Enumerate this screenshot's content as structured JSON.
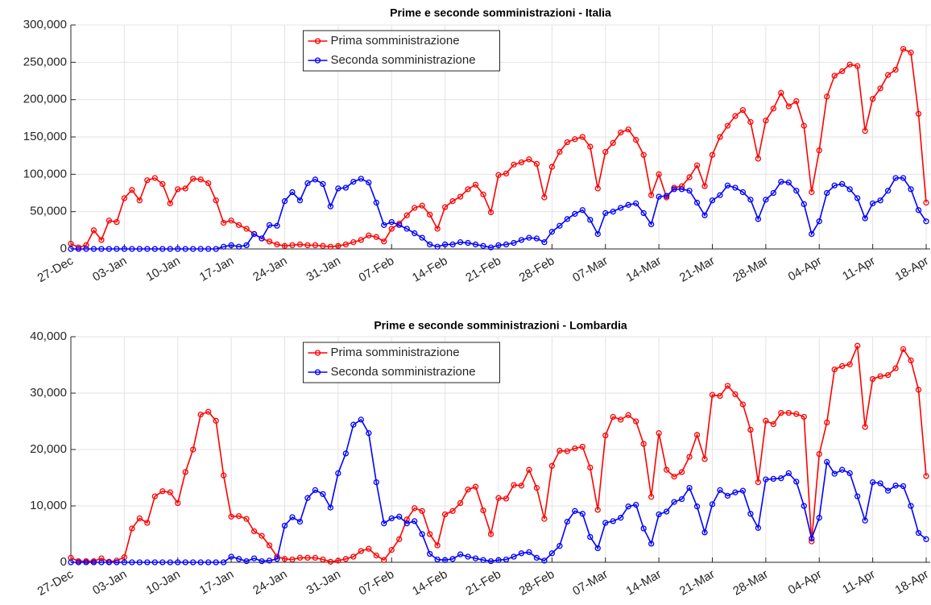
{
  "chart_data": [
    {
      "type": "line",
      "title": "Prime e seconde somministrazioni - Italia",
      "x": [
        "27-Dec",
        "28-Dec",
        "29-Dec",
        "30-Dec",
        "31-Dec",
        "01-Jan",
        "02-Jan",
        "03-Jan",
        "04-Jan",
        "05-Jan",
        "06-Jan",
        "07-Jan",
        "08-Jan",
        "09-Jan",
        "10-Jan",
        "11-Jan",
        "12-Jan",
        "13-Jan",
        "14-Jan",
        "15-Jan",
        "16-Jan",
        "17-Jan",
        "18-Jan",
        "19-Jan",
        "20-Jan",
        "21-Jan",
        "22-Jan",
        "23-Jan",
        "24-Jan",
        "25-Jan",
        "26-Jan",
        "27-Jan",
        "28-Jan",
        "29-Jan",
        "30-Jan",
        "31-Jan",
        "01-Feb",
        "02-Feb",
        "03-Feb",
        "04-Feb",
        "05-Feb",
        "06-Feb",
        "07-Feb",
        "08-Feb",
        "09-Feb",
        "10-Feb",
        "11-Feb",
        "12-Feb",
        "13-Feb",
        "14-Feb",
        "15-Feb",
        "16-Feb",
        "17-Feb",
        "18-Feb",
        "19-Feb",
        "20-Feb",
        "21-Feb",
        "22-Feb",
        "23-Feb",
        "24-Feb",
        "25-Feb",
        "26-Feb",
        "27-Feb",
        "28-Feb",
        "01-Mar",
        "02-Mar",
        "03-Mar",
        "04-Mar",
        "05-Mar",
        "06-Mar",
        "07-Mar",
        "08-Mar",
        "09-Mar",
        "10-Mar",
        "11-Mar",
        "12-Mar",
        "13-Mar",
        "14-Mar",
        "15-Mar",
        "16-Mar",
        "17-Mar",
        "18-Mar",
        "19-Mar",
        "20-Mar",
        "21-Mar",
        "22-Mar",
        "23-Mar",
        "24-Mar",
        "25-Mar",
        "26-Mar",
        "27-Mar",
        "28-Mar",
        "29-Mar",
        "30-Mar",
        "31-Mar",
        "01-Apr",
        "02-Apr",
        "03-Apr",
        "04-Apr",
        "05-Apr",
        "06-Apr",
        "07-Apr",
        "08-Apr",
        "09-Apr",
        "10-Apr",
        "11-Apr",
        "12-Apr",
        "13-Apr",
        "14-Apr",
        "15-Apr",
        "16-Apr",
        "17-Apr",
        "18-Apr"
      ],
      "xticks": [
        "27-Dec",
        "03-Jan",
        "10-Jan",
        "17-Jan",
        "24-Jan",
        "31-Jan",
        "07-Feb",
        "14-Feb",
        "21-Feb",
        "28-Feb",
        "07-Mar",
        "14-Mar",
        "21-Mar",
        "28-Mar",
        "04-Apr",
        "11-Apr",
        "18-Apr"
      ],
      "ylim": [
        0,
        300000
      ],
      "yticks": [
        0,
        {
          "value": 50000,
          "label": "50,000"
        },
        {
          "value": 100000,
          "label": "100,000"
        },
        {
          "value": 150000,
          "label": "150,000"
        },
        {
          "value": 200000,
          "label": "200,000"
        },
        {
          "value": 250000,
          "label": "250,000"
        },
        {
          "value": 300000,
          "label": "300,000"
        }
      ],
      "grid": true,
      "legend": "north",
      "series": [
        {
          "name": "Prima somministrazione",
          "color": "#ff0000",
          "values": [
            7000,
            2000,
            5000,
            25000,
            12000,
            38000,
            36000,
            68000,
            79000,
            65000,
            92000,
            95000,
            87000,
            61000,
            80000,
            81000,
            94000,
            93000,
            88000,
            65000,
            35000,
            38000,
            32000,
            27000,
            20000,
            14000,
            10000,
            6000,
            4000,
            5000,
            6000,
            5000,
            5000,
            4000,
            3000,
            4000,
            6000,
            9000,
            12000,
            18000,
            16000,
            10000,
            27000,
            34000,
            45000,
            55000,
            58000,
            46000,
            27000,
            56000,
            64000,
            70000,
            80000,
            86000,
            73000,
            49000,
            99000,
            101000,
            113000,
            116000,
            120000,
            114000,
            69000,
            110000,
            130000,
            143000,
            147000,
            150000,
            137000,
            81000,
            130000,
            142000,
            156000,
            160000,
            146000,
            126000,
            72000,
            100000,
            69000,
            82000,
            84000,
            96000,
            112000,
            84000,
            126000,
            150000,
            165000,
            178000,
            186000,
            170000,
            121000,
            172000,
            188000,
            209000,
            191000,
            198000,
            165000,
            76000,
            132000,
            204000,
            232000,
            238000,
            247000,
            245000,
            158000,
            201000,
            215000,
            233000,
            240000,
            268000,
            263000,
            181000,
            62000
          ]
        },
        {
          "name": "Seconda somministrazione",
          "color": "#0000ff",
          "values": [
            0,
            0,
            0,
            0,
            0,
            0,
            0,
            0,
            0,
            0,
            0,
            0,
            0,
            0,
            0,
            0,
            0,
            0,
            0,
            0,
            3000,
            5000,
            3000,
            5000,
            20000,
            14000,
            32000,
            31000,
            64000,
            76000,
            65000,
            88000,
            93000,
            87000,
            57000,
            81000,
            82000,
            90000,
            94000,
            89000,
            62000,
            32000,
            36000,
            32000,
            27000,
            21000,
            15000,
            6000,
            3000,
            6000,
            6000,
            9000,
            8000,
            6000,
            4000,
            2000,
            5000,
            6000,
            8000,
            12000,
            15000,
            14000,
            9000,
            23000,
            31000,
            40000,
            47000,
            52000,
            39000,
            20000,
            48000,
            50000,
            55000,
            59000,
            61000,
            48000,
            33000,
            70000,
            71000,
            80000,
            80000,
            78000,
            62000,
            45000,
            65000,
            72000,
            85000,
            82000,
            76000,
            66000,
            40000,
            66000,
            75000,
            90000,
            89000,
            78000,
            60000,
            20000,
            37000,
            75000,
            85000,
            87000,
            80000,
            68000,
            41000,
            61000,
            65000,
            78000,
            95000,
            95000,
            80000,
            52000,
            37000
          ]
        }
      ]
    },
    {
      "type": "line",
      "title": "Prime e seconde somministrazioni - Lombardia",
      "x": [
        "27-Dec",
        "28-Dec",
        "29-Dec",
        "30-Dec",
        "31-Dec",
        "01-Jan",
        "02-Jan",
        "03-Jan",
        "04-Jan",
        "05-Jan",
        "06-Jan",
        "07-Jan",
        "08-Jan",
        "09-Jan",
        "10-Jan",
        "11-Jan",
        "12-Jan",
        "13-Jan",
        "14-Jan",
        "15-Jan",
        "16-Jan",
        "17-Jan",
        "18-Jan",
        "19-Jan",
        "20-Jan",
        "21-Jan",
        "22-Jan",
        "23-Jan",
        "24-Jan",
        "25-Jan",
        "26-Jan",
        "27-Jan",
        "28-Jan",
        "29-Jan",
        "30-Jan",
        "31-Jan",
        "01-Feb",
        "02-Feb",
        "03-Feb",
        "04-Feb",
        "05-Feb",
        "06-Feb",
        "07-Feb",
        "08-Feb",
        "09-Feb",
        "10-Feb",
        "11-Feb",
        "12-Feb",
        "13-Feb",
        "14-Feb",
        "15-Feb",
        "16-Feb",
        "17-Feb",
        "18-Feb",
        "19-Feb",
        "20-Feb",
        "21-Feb",
        "22-Feb",
        "23-Feb",
        "24-Feb",
        "25-Feb",
        "26-Feb",
        "27-Feb",
        "28-Feb",
        "01-Mar",
        "02-Mar",
        "03-Mar",
        "04-Mar",
        "05-Mar",
        "06-Mar",
        "07-Mar",
        "08-Mar",
        "09-Mar",
        "10-Mar",
        "11-Mar",
        "12-Mar",
        "13-Mar",
        "14-Mar",
        "15-Mar",
        "16-Mar",
        "17-Mar",
        "18-Mar",
        "19-Mar",
        "20-Mar",
        "21-Mar",
        "22-Mar",
        "23-Mar",
        "24-Mar",
        "25-Mar",
        "26-Mar",
        "27-Mar",
        "28-Mar",
        "29-Mar",
        "30-Mar",
        "31-Mar",
        "01-Apr",
        "02-Apr",
        "03-Apr",
        "04-Apr",
        "05-Apr",
        "06-Apr",
        "07-Apr",
        "08-Apr",
        "09-Apr",
        "10-Apr",
        "11-Apr",
        "12-Apr",
        "13-Apr",
        "14-Apr",
        "15-Apr",
        "16-Apr",
        "17-Apr",
        "18-Apr"
      ],
      "xticks": [
        "27-Dec",
        "03-Jan",
        "10-Jan",
        "17-Jan",
        "24-Jan",
        "31-Jan",
        "07-Feb",
        "14-Feb",
        "21-Feb",
        "28-Feb",
        "07-Mar",
        "14-Mar",
        "21-Mar",
        "28-Mar",
        "04-Apr",
        "11-Apr",
        "18-Apr"
      ],
      "ylim": [
        0,
        40000
      ],
      "yticks": [
        0,
        {
          "value": 10000,
          "label": "10,000"
        },
        {
          "value": 20000,
          "label": "20,000"
        },
        {
          "value": 30000,
          "label": "30,000"
        },
        {
          "value": 40000,
          "label": "40,000"
        }
      ],
      "grid": true,
      "legend": "north",
      "series": [
        {
          "name": "Prima somministrazione",
          "color": "#ff0000",
          "values": [
            800,
            200,
            200,
            200,
            700,
            100,
            300,
            900,
            6000,
            7800,
            7000,
            11700,
            12600,
            12400,
            10500,
            16000,
            20000,
            26200,
            26700,
            25100,
            15400,
            8100,
            8200,
            7700,
            5500,
            4700,
            3000,
            1000,
            600,
            500,
            800,
            800,
            800,
            500,
            100,
            300,
            600,
            1000,
            2000,
            2400,
            1200,
            400,
            2200,
            4100,
            7600,
            9600,
            9100,
            5000,
            3000,
            8500,
            9100,
            10500,
            12900,
            13400,
            9200,
            5000,
            11400,
            11300,
            13700,
            13600,
            16400,
            13200,
            7700,
            17100,
            19800,
            19700,
            20200,
            20500,
            16800,
            9300,
            22500,
            25800,
            25300,
            26100,
            25000,
            21000,
            11600,
            22900,
            16400,
            15200,
            16000,
            18700,
            22600,
            18300,
            29700,
            29500,
            31300,
            29800,
            28000,
            23500,
            14200,
            25100,
            24500,
            26500,
            26500,
            26300,
            25800,
            3700,
            19200,
            24800,
            34200,
            34800,
            35100,
            38400,
            24000,
            32500,
            33000,
            33200,
            34400,
            37800,
            35800,
            30600,
            15300
          ]
        },
        {
          "name": "Seconda somministrazione",
          "color": "#0000ff",
          "values": [
            0,
            0,
            0,
            0,
            0,
            0,
            0,
            0,
            0,
            0,
            0,
            0,
            0,
            0,
            0,
            0,
            0,
            0,
            0,
            0,
            0,
            1000,
            600,
            200,
            700,
            200,
            300,
            600,
            6500,
            8000,
            7200,
            11400,
            12800,
            12100,
            9700,
            15800,
            19300,
            24400,
            25300,
            22900,
            14200,
            6900,
            7800,
            8100,
            6900,
            7300,
            5000,
            1500,
            500,
            400,
            600,
            1400,
            1000,
            700,
            400,
            200,
            400,
            500,
            1000,
            1600,
            1800,
            800,
            300,
            1600,
            2900,
            7200,
            9100,
            8600,
            4500,
            2500,
            7000,
            7300,
            7900,
            9900,
            10200,
            6000,
            3300,
            8500,
            9000,
            10700,
            11200,
            13200,
            9900,
            5300,
            10300,
            12800,
            11800,
            12400,
            12700,
            8600,
            6100,
            14700,
            14800,
            14900,
            15800,
            14300,
            10000,
            4200,
            7900,
            17800,
            15700,
            16400,
            15800,
            11700,
            7400,
            14200,
            14000,
            12700,
            13600,
            13500,
            10000,
            5200,
            4100
          ]
        }
      ]
    }
  ]
}
